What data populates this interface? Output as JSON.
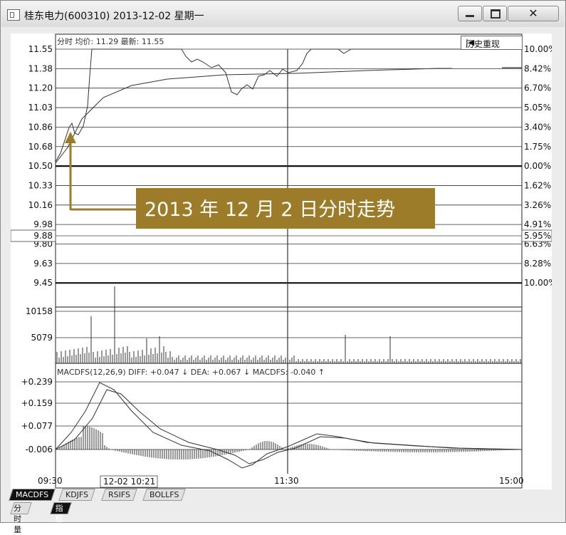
{
  "window": {
    "title": "桂东电力(600310) 2013-12-02 星期一",
    "min_label": "—",
    "max_label": "□",
    "close_label": "✕"
  },
  "header": {
    "text": "分时 均价: 11.29 最新: 11.55",
    "history_button": "历史重现",
    "history_icon": "jump-to-start-icon",
    "history_glyph": "|◀"
  },
  "price_axis": {
    "left": [
      "11.55",
      "11.38",
      "11.20",
      "11.03",
      "10.86",
      "10.68",
      "10.50",
      "10.33",
      "10.16",
      "9.98",
      "9.80",
      "9.63",
      "9.45"
    ],
    "right": [
      "10.00%",
      "8.42%",
      "6.70%",
      "5.05%",
      "3.40%",
      "1.75%",
      "0.00%",
      "1.62%",
      "3.26%",
      "4.91%",
      "6.63%",
      "8.28%",
      "10.00%"
    ],
    "cursor_left": "9.88",
    "cursor_right": "5.95%"
  },
  "volume_axis": {
    "labels": [
      "10158",
      "5079"
    ]
  },
  "macd": {
    "header_text": "MACDFS(12,26,9) DIFF: +0.047 ↓  DEA: +0.067 ↓  MACDFS: -0.040 ↑",
    "labels": [
      "+0.239",
      "+0.159",
      "+0.077",
      "-0.006"
    ]
  },
  "time_axis": {
    "labels": [
      "09:30",
      "11:30",
      "15:00"
    ],
    "cursor_label": "12-02 10:21"
  },
  "annotation": {
    "text": "2013 年 12 月 2 日分时走势",
    "color": "#9c7c28"
  },
  "tabs": {
    "row1": [
      "MACDFS",
      "KDJFS",
      "RSIFS",
      "BOLLFS"
    ],
    "row2": [
      "分时量",
      "指标"
    ]
  },
  "chart_data": {
    "type": "line",
    "x": [
      "09:30",
      "11:30",
      "15:00"
    ],
    "series": [],
    "ylim": [
      9.45,
      11.55
    ]
  }
}
